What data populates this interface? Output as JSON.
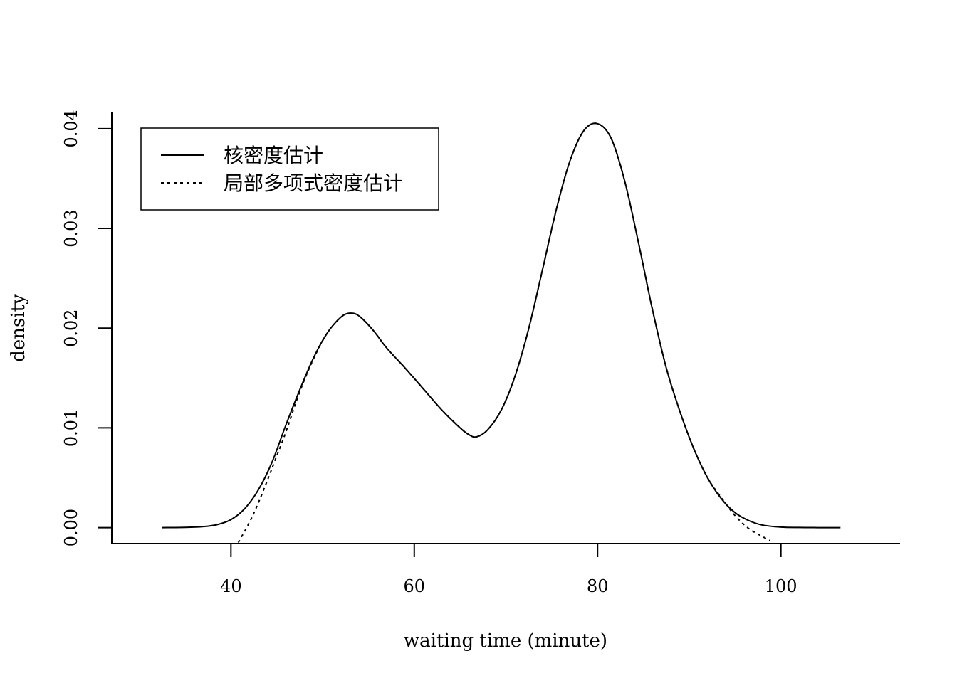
{
  "chart_data": {
    "type": "line",
    "title": "",
    "xlabel": "waiting time (minute)",
    "ylabel": "density",
    "xlim": [
      27,
      113
    ],
    "ylim": [
      -0.0016,
      0.0417
    ],
    "x_ticks": [
      40,
      60,
      80,
      100
    ],
    "x_tick_labels": [
      "40",
      "60",
      "80",
      "100"
    ],
    "y_ticks": [
      0.0,
      0.01,
      0.02,
      0.03,
      0.04
    ],
    "y_tick_labels": [
      "0.00",
      "0.01",
      "0.02",
      "0.03",
      "0.04"
    ],
    "grid": false,
    "legend": {
      "placement": "top-left",
      "entries": [
        "核密度估计",
        "局部多项式密度估计"
      ]
    },
    "series": [
      {
        "name": "核密度估计",
        "line_style": "solid",
        "color": "#000000",
        "x": [
          32.5,
          35,
          37,
          38.5,
          40,
          41.5,
          43,
          44.5,
          46,
          47.5,
          49,
          50.5,
          52,
          53,
          54,
          55.5,
          57,
          59,
          61,
          63,
          65,
          66,
          66.8,
          68,
          69.5,
          71,
          72.5,
          74,
          75.5,
          77,
          78.5,
          80,
          81.5,
          83,
          84.5,
          86,
          87.5,
          89,
          90.5,
          92,
          93.5,
          95,
          96.5,
          98,
          100,
          102,
          104,
          106.5
        ],
        "y": [
          0.0,
          2e-05,
          0.0001,
          0.0003,
          0.0008,
          0.0019,
          0.0038,
          0.0066,
          0.0103,
          0.0138,
          0.017,
          0.0195,
          0.0211,
          0.0215,
          0.0212,
          0.0198,
          0.018,
          0.016,
          0.0139,
          0.0118,
          0.01,
          0.0093,
          0.0091,
          0.0098,
          0.0118,
          0.0152,
          0.02,
          0.0259,
          0.0319,
          0.0368,
          0.0398,
          0.0405,
          0.039,
          0.0346,
          0.0284,
          0.0218,
          0.016,
          0.0116,
          0.0079,
          0.005,
          0.0029,
          0.0015,
          0.0007,
          0.00025,
          5e-05,
          1e-05,
          0.0,
          0.0
        ]
      },
      {
        "name": "局部多项式密度估计",
        "line_style": "dotted",
        "color": "#000000",
        "x": [
          40.8,
          42,
          43,
          44,
          45,
          46,
          47.5,
          49,
          50.5,
          52,
          53,
          54,
          55.5,
          57,
          59,
          61,
          63,
          65,
          66,
          66.8,
          68,
          69.5,
          71,
          72.5,
          74,
          75.5,
          77,
          78.5,
          80,
          81.5,
          83,
          84.5,
          86,
          87.5,
          89,
          90.5,
          92,
          93.5,
          95,
          96.5,
          98,
          98.8
        ],
        "y": [
          -0.0015,
          0.0005,
          0.0025,
          0.0048,
          0.0072,
          0.0096,
          0.0136,
          0.0169,
          0.0195,
          0.0211,
          0.0215,
          0.0212,
          0.0198,
          0.018,
          0.016,
          0.0139,
          0.0118,
          0.01,
          0.0093,
          0.0091,
          0.0098,
          0.0118,
          0.0152,
          0.02,
          0.0259,
          0.0319,
          0.0368,
          0.0398,
          0.0405,
          0.039,
          0.0346,
          0.0284,
          0.0218,
          0.016,
          0.0116,
          0.0079,
          0.005,
          0.003,
          0.0012,
          -0.0001,
          -0.0009,
          -0.0013
        ]
      }
    ]
  }
}
